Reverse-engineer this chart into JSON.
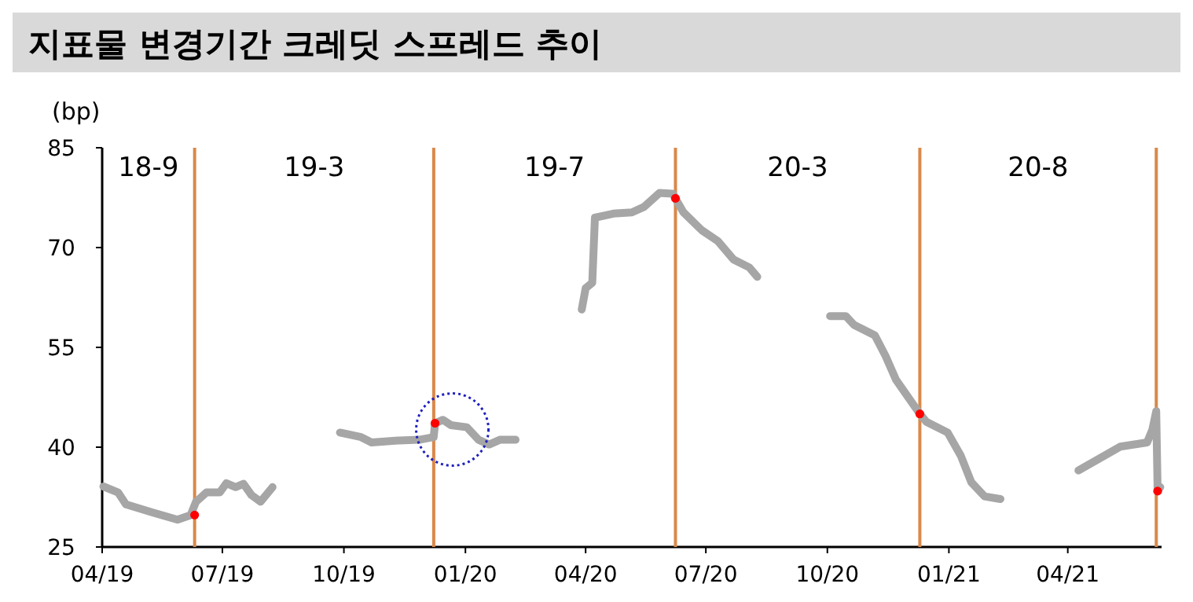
{
  "chart_data": {
    "type": "line",
    "title": "지표물 변경기간 크레딧 스프레드 추이",
    "ylabel": "(bp)",
    "series": [
      {
        "color": "#a6a6a6",
        "x": [
          "2019-04-02",
          "2019-04-13",
          "2019-04-19",
          "2019-05-09",
          "2019-05-28",
          "2019-06-07",
          "2019-06-11",
          "2019-06-19",
          "2019-06-29",
          "2019-07-04",
          "2019-07-11",
          "2019-07-17",
          "2019-07-23",
          "2019-07-30",
          "2019-08-08"
        ],
        "values": [
          34.1,
          33.2,
          31.4,
          30.2,
          29.1,
          29.8,
          31.8,
          33.2,
          33.2,
          34.6,
          34.0,
          34.5,
          32.8,
          31.8,
          34.0
        ]
      },
      {
        "color": "#a6a6a6",
        "x": [
          "2019-09-28",
          "2019-10-14",
          "2019-10-22",
          "2019-11-11",
          "2019-11-27",
          "2019-12-08",
          "2019-12-09",
          "2019-12-15",
          "2019-12-21",
          "2020-01-02",
          "2020-01-11",
          "2020-01-19",
          "2020-01-27",
          "2020-02-08"
        ],
        "values": [
          42.2,
          41.5,
          40.7,
          41.0,
          41.1,
          41.5,
          43.6,
          44.1,
          43.3,
          43.0,
          41.1,
          40.4,
          41.1,
          41.1
        ]
      },
      {
        "color": "#a6a6a6",
        "x": [
          "2020-03-29",
          "2020-04-01",
          "2020-04-06",
          "2020-04-08",
          "2020-04-22",
          "2020-05-06",
          "2020-05-15",
          "2020-05-27",
          "2020-06-06",
          "2020-06-08",
          "2020-06-14",
          "2020-06-28",
          "2020-07-10",
          "2020-07-22",
          "2020-08-03",
          "2020-08-09"
        ],
        "values": [
          60.7,
          63.9,
          64.7,
          74.5,
          75.1,
          75.3,
          76.1,
          78.2,
          78.1,
          77.4,
          75.3,
          72.6,
          71.0,
          68.2,
          67.0,
          65.6
        ]
      },
      {
        "color": "#a6a6a6",
        "x": [
          "2020-10-03",
          "2020-10-15",
          "2020-10-21",
          "2020-11-06",
          "2020-11-14",
          "2020-11-22",
          "2020-12-10",
          "2020-12-15",
          "2020-12-31",
          "2021-01-10",
          "2021-01-18",
          "2021-01-28",
          "2021-02-09"
        ],
        "values": [
          59.7,
          59.7,
          58.4,
          56.8,
          53.7,
          50.1,
          45.0,
          43.8,
          42.2,
          38.7,
          34.7,
          32.6,
          32.2
        ]
      },
      {
        "color": "#a6a6a6",
        "x": [
          "2021-04-09",
          "2021-04-25",
          "2021-05-11",
          "2021-05-31",
          "2021-06-04",
          "2021-06-07",
          "2021-06-08",
          "2021-06-10"
        ],
        "values": [
          36.5,
          38.3,
          40.1,
          40.7,
          42.6,
          45.4,
          33.4,
          34.0
        ]
      },
      {
        "type": "scatter",
        "marker": "circle",
        "color": "#ff0000",
        "x": [
          "2019-06-10",
          "2019-12-09",
          "2020-06-08",
          "2020-12-10",
          "2021-06-08"
        ],
        "values": [
          29.8,
          43.6,
          77.4,
          45.0,
          33.4
        ]
      }
    ],
    "ref_lines": [
      {
        "axis": "x",
        "value": "2019-06-10",
        "color": "#d9894a"
      },
      {
        "axis": "x",
        "value": "2019-12-08",
        "color": "#d9894a"
      },
      {
        "axis": "x",
        "value": "2020-06-08",
        "color": "#d9894a"
      },
      {
        "axis": "x",
        "value": "2020-12-10",
        "color": "#d9894a"
      },
      {
        "axis": "x",
        "value": "2021-06-07",
        "color": "#d9894a"
      }
    ],
    "annotations": [
      "18-9",
      "19-3",
      "19-7",
      "20-3",
      "20-8"
    ],
    "xlim": [
      "2019-04-01",
      "2021-06-11"
    ],
    "xticks": [
      {
        "value": "2019-04-01",
        "label": "04/19"
      },
      {
        "value": "2019-07-01",
        "label": "07/19"
      },
      {
        "value": "2019-10-01",
        "label": "10/19"
      },
      {
        "value": "2020-01-01",
        "label": "01/20"
      },
      {
        "value": "2020-04-01",
        "label": "04/20"
      },
      {
        "value": "2020-07-01",
        "label": "07/20"
      },
      {
        "value": "2020-10-01",
        "label": "10/20"
      },
      {
        "value": "2021-01-01",
        "label": "01/21"
      },
      {
        "value": "2021-04-01",
        "label": "04/21"
      }
    ],
    "ylim": [
      25,
      85
    ],
    "yticks": [
      25,
      40,
      55,
      70,
      85
    ],
    "grid": false,
    "line_style": "solid"
  }
}
